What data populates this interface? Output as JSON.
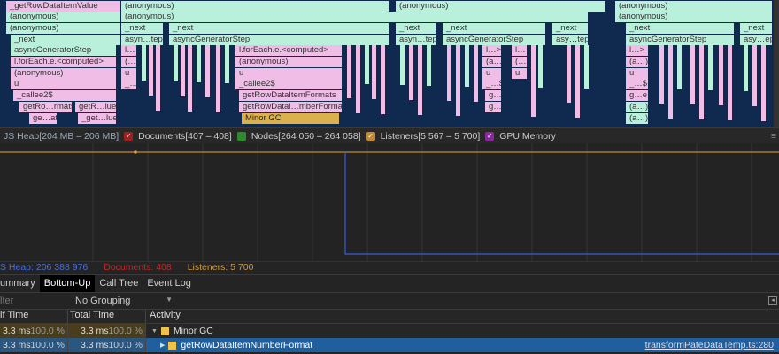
{
  "flame": {
    "blocks": [
      "_getRowDataItemValue",
      "(anonymous)",
      "(anonymous)",
      "(anonymous)",
      "(anonymous)",
      "(anonymous)",
      "(anonymous)",
      "(anonymous)",
      "_next",
      "_next",
      "_next",
      "_next",
      "_next",
      "_next",
      "_next",
      "_next",
      "asyn…tep",
      "asyncGeneratorStep",
      "asyn…tep",
      "asyncGeneratorStep",
      "asy…tep",
      "asyncGeneratorStep",
      "asy…ep",
      "asyncGeneratorStep",
      "l…",
      "l.forEach.e.<computed>",
      "l…>",
      "l…",
      "l…>",
      "l.forEach.e.<computed>",
      "(…)",
      "(anonymous)",
      "(a…)",
      "(…",
      "(a…)",
      "(anonymous)",
      "u",
      "u",
      "u",
      "u",
      "u",
      "u",
      "_…",
      "_callee2$",
      "_…$",
      "_…$",
      "_callee2$",
      "getRowDataItemFormats",
      "g…",
      "g…e",
      "getRo…rmats",
      "getR…lue",
      "getRowDatal…mberFormat",
      "g…",
      "(a…)",
      "ge…at",
      "_get…lue",
      "Minor GC",
      "(a…)"
    ]
  },
  "counters": {
    "js_heap": "JS Heap[204 MB – 206 MB]",
    "documents": "Documents[407 – 408]",
    "nodes": "Nodes[264 050 – 264 058]",
    "listeners": "Listeners[5 567 – 5 700]",
    "gpu": "GPU Memory",
    "colors": {
      "documents": "#a02020",
      "nodes": "#2e8b2e",
      "listeners": "#c08a30",
      "gpu": "#8a2a9a",
      "heap": "#3b5bd6"
    }
  },
  "status": {
    "heap": "S Heap: 206 388 976",
    "documents": "Documents: 408",
    "listeners": "Listeners: 5 700"
  },
  "tabs": [
    "ummary",
    "Bottom-Up",
    "Call Tree",
    "Event Log"
  ],
  "filter": {
    "placeholder": "lter",
    "grouping": "No Grouping"
  },
  "table": {
    "headers": [
      "lf Time",
      "Total Time",
      "Activity"
    ],
    "rows": [
      {
        "self": "3.3 ms",
        "self_pct": "100.0 %",
        "total": "3.3 ms",
        "total_pct": "100.0 %",
        "activity": "Minor GC",
        "source": ""
      },
      {
        "self": "3.3 ms",
        "self_pct": "100.0 %",
        "total": "3.3 ms",
        "total_pct": "100.0 %",
        "activity": "getRowDataItemNumberFormat",
        "source": "transformPateDataTemp.ts:280"
      }
    ]
  }
}
